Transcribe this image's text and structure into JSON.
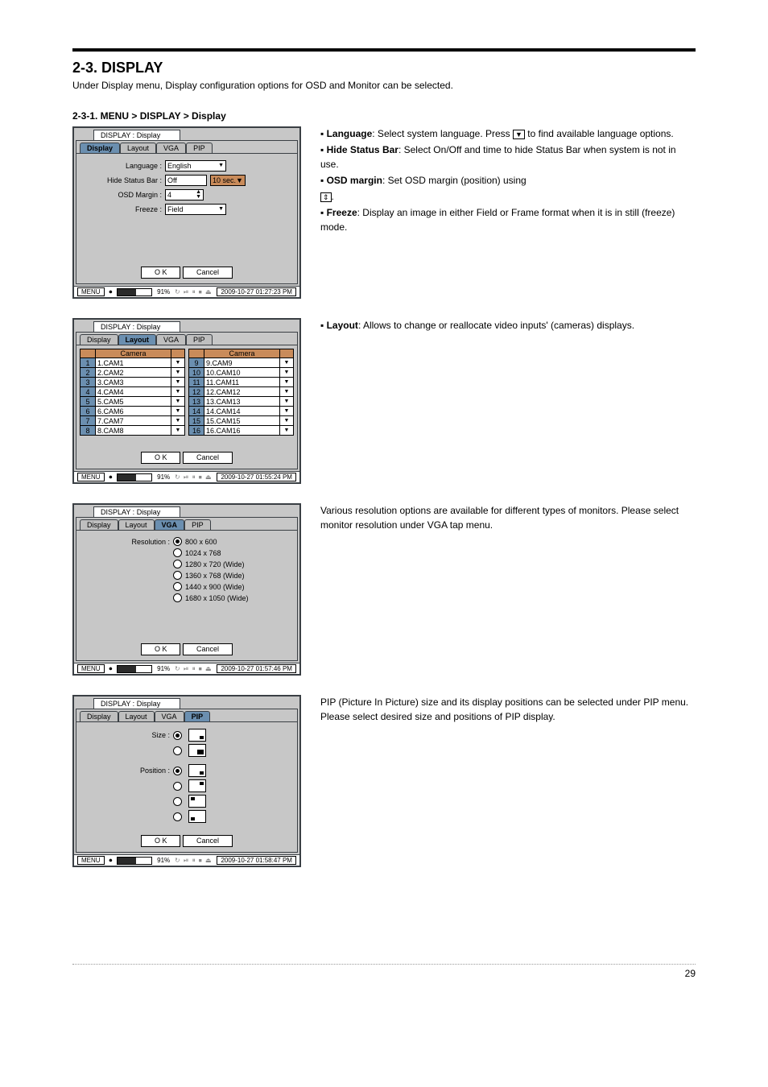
{
  "page_number": "29",
  "section": {
    "title": "2-3. DISPLAY",
    "subtitle": "Under Display menu, Display configuration options for OSD and Monitor can be selected.",
    "sub1_title": "2-3-1. MENU > DISPLAY > Display"
  },
  "desc": {
    "display": {
      "language": "Language",
      "language_txt": ": Select system language. Press ",
      "language_txt2": " to find available language options.",
      "hide_bar": "Hide Status Bar",
      "hide_bar_txt": ": Select On/Off and time to hide Status Bar when system is not in use.",
      "osd_margin": "OSD margin",
      "osd_margin_txt": ": Set OSD margin (position) using",
      "osd_margin_txt2": ".",
      "freeze": "Freeze",
      "freeze_txt": ": Display an image in either Field or Frame format when it is in still (freeze) mode."
    },
    "layout": {
      "layout": "Layout",
      "layout_txt": ": Allows to change or reallocate video inputs' (cameras) displays."
    },
    "vga_txt": "Various resolution options are available for different types of monitors. Please select monitor resolution under VGA tap menu.",
    "pip_txt": "PIP (Picture In Picture) size and its display positions can be selected under PIP menu. Please select desired size and positions of PIP display."
  },
  "shot_common": {
    "window_title": "DISPLAY : Display",
    "tabs": [
      "Display",
      "Layout",
      "VGA",
      "PIP"
    ],
    "ok": "O K",
    "cancel": "Cancel",
    "menu": "MENU",
    "pct": "91%",
    "rec_icon": "⏺",
    "ts_icons": "↻ ⏯ ⏸ ⏹ ⏏"
  },
  "shot1": {
    "active_tab": 0,
    "language_label": "Language :",
    "language_value": "English",
    "hidebar_label": "Hide Status Bar :",
    "hidebar_value": "Off",
    "hidebar_time": "10 sec.",
    "osd_label": "OSD Margin :",
    "osd_value": "4",
    "freeze_label": "Freeze :",
    "freeze_value": "Field",
    "timestamp": "2009-10-27 01:27:23 PM"
  },
  "shot2": {
    "active_tab": 1,
    "col_header": "Camera",
    "left": [
      {
        "n": "1",
        "v": "1.CAM1"
      },
      {
        "n": "2",
        "v": "2.CAM2"
      },
      {
        "n": "3",
        "v": "3.CAM3"
      },
      {
        "n": "4",
        "v": "4.CAM4"
      },
      {
        "n": "5",
        "v": "5.CAM5"
      },
      {
        "n": "6",
        "v": "6.CAM6"
      },
      {
        "n": "7",
        "v": "7.CAM7"
      },
      {
        "n": "8",
        "v": "8.CAM8"
      }
    ],
    "right": [
      {
        "n": "9",
        "v": "9.CAM9"
      },
      {
        "n": "10",
        "v": "10.CAM10"
      },
      {
        "n": "11",
        "v": "11.CAM11"
      },
      {
        "n": "12",
        "v": "12.CAM12"
      },
      {
        "n": "13",
        "v": "13.CAM13"
      },
      {
        "n": "14",
        "v": "14.CAM14"
      },
      {
        "n": "15",
        "v": "15.CAM15"
      },
      {
        "n": "16",
        "v": "16.CAM16"
      }
    ],
    "timestamp": "2009-10-27 01:55:24 PM"
  },
  "shot3": {
    "active_tab": 2,
    "res_label": "Resolution :",
    "options": [
      "800 x 600",
      "1024 x 768",
      "1280 x 720 (Wide)",
      "1360 x 768 (Wide)",
      "1440 x 900 (Wide)",
      "1680 x 1050 (Wide)"
    ],
    "selected": 0,
    "timestamp": "2009-10-27 01:57:46 PM"
  },
  "shot4": {
    "active_tab": 3,
    "size_label": "Size :",
    "pos_label": "Position :",
    "timestamp": "2009-10-27 01:58:47 PM"
  },
  "progress_fill_pct": 55
}
